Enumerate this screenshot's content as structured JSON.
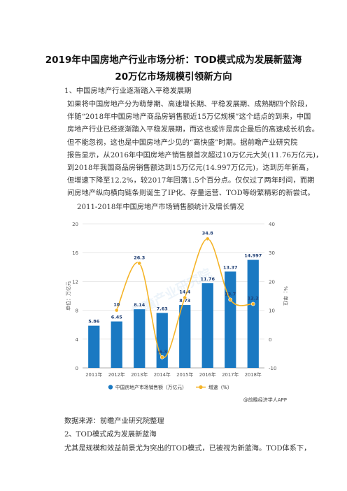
{
  "article": {
    "title_line1": "2019年中国房地产行业市场分析：TOD模式成为发展新蓝海",
    "title_line2": "20万亿市场规模引领新方向",
    "section1_heading": "1、中国房地产行业逐渐踏入平稳发展期",
    "p1": [
      "如果将中国房地产分为萌芽期、高速增长期、平稳发展期、成熟期四个阶段，",
      "伴随“2018年中国房地产商品房销售额近15万亿规模”这个结点的到来，中国",
      "房地产行业已经逐渐踏入平稳发展期，而这也或许是房企最后的高速成长机会。"
    ],
    "p2": [
      "但不能忽视，这也是中国房地产少见的“高快盛”时期。据前瞻产业研究院",
      "报告显示，从2016年中国房地产销售额首次超过10万亿元大关(11.76万亿元)，",
      "到2018年我国商品房销售额达到15万亿元(14.997万亿元)，达到历年新高，",
      "但增速下降至12.2%，较2017年回落1.5个百分点。仅仅过了两年时间，而期",
      "间房地产纵向横向链条则诞生了IP化、存量运营、TOD等纷繁精彩的新尝试。"
    ],
    "chart_caption": "2011-2018年中国房地产市场销售额统计及增长情况",
    "source": "数据来源：前瞻产业研究院整理",
    "section2_heading": "2、TOD模式成为发展新蓝海",
    "p3": "尤其是规模和效益前景尤为突出的TOD模式，已被视为新蓝海。TOD体系下，"
  },
  "chart_data": {
    "type": "bar",
    "categories": [
      "2011年",
      "2012年",
      "2013年",
      "2014年",
      "2015年",
      "2016年",
      "2017年",
      "2018年"
    ],
    "series": [
      {
        "name": "中国房地产市场销售额（万亿元）",
        "kind": "bar",
        "axis": "left",
        "values": [
          5.86,
          6.45,
          8.14,
          7.63,
          8.73,
          11.76,
          13.37,
          14.997
        ],
        "labels": [
          "5.86",
          "6.45",
          "8.14",
          "7.63",
          "8.73",
          "11.76",
          "13.37",
          "14.997"
        ],
        "color": "#1a79c2"
      },
      {
        "name": "增速（%）",
        "kind": "line",
        "axis": "right",
        "values": [
          null,
          10,
          26.3,
          -6.3,
          14.4,
          34.8,
          13.7,
          12.2
        ],
        "labels": [
          "",
          "10",
          "26.3",
          "-6.3",
          "14.4",
          "34.8",
          "13.7",
          "12.2"
        ],
        "color": "#f5b428"
      }
    ],
    "ylabel": "单位：万亿元",
    "y2label": "%：单位",
    "ylim": [
      0,
      20
    ],
    "yticks": [
      "0",
      "4",
      "8",
      "12",
      "16",
      "20"
    ],
    "y2lim": [
      -10,
      40
    ],
    "y2ticks": [
      "-10",
      "0",
      "10",
      "20",
      "30",
      "40"
    ],
    "watermark": "前瞻产业研究院",
    "credit": "@前瞻经济学人APP",
    "legend_position": "bottom",
    "grid": true
  }
}
